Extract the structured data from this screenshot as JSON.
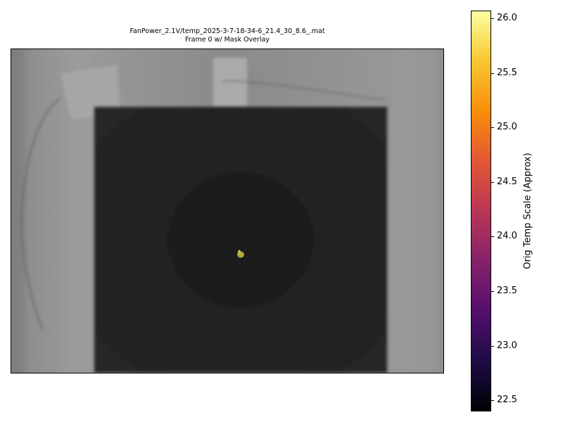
{
  "title": {
    "line1": "FanPower_2.1V/temp_2025-3-7-18-34-6_21.4_30_8.6_.mat",
    "line2": "Frame 0 w/ Mask Overlay"
  },
  "colorbar": {
    "label": "Orig Temp Scale (Approx)",
    "colormap": "inferno",
    "range": [
      22.4,
      26.07
    ],
    "ticks": [
      "22.5",
      "23.0",
      "23.5",
      "24.0",
      "24.5",
      "25.0",
      "25.5",
      "26.0"
    ]
  },
  "image": {
    "description_colors": {
      "background_gray": "#8e8e8e",
      "plate_dark": "#202020",
      "mask_overlay": "#b9b43a"
    }
  }
}
